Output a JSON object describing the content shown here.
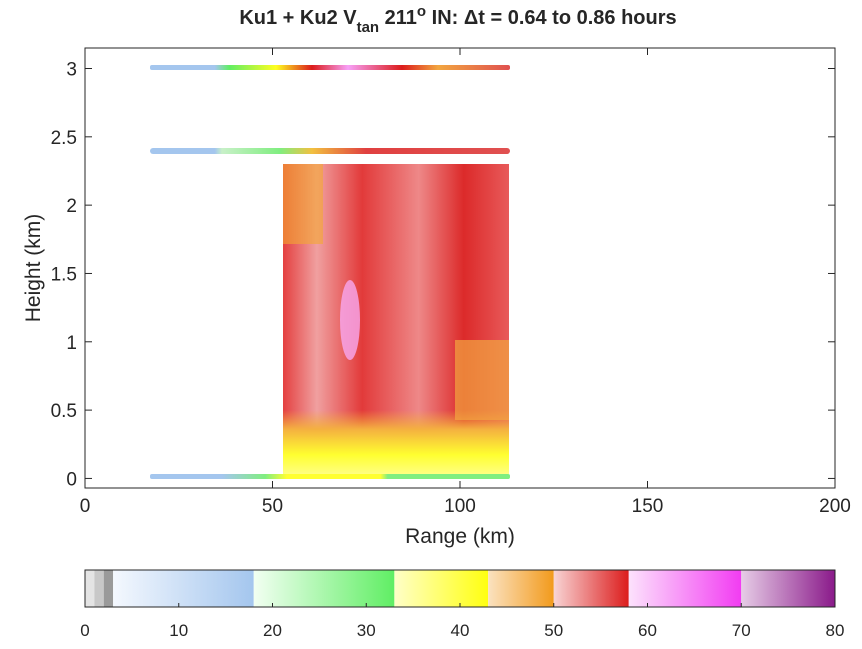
{
  "chart_data": {
    "type": "heatmap",
    "title": [
      "Ku1 + Ku2  V",
      "tan",
      " 211",
      "o",
      " IN: Δt = 0.64 to 0.86 hours"
    ],
    "x_label": "Range (km)",
    "y_label": "Height (km)",
    "xlim": [
      0,
      200
    ],
    "xticks": [
      0,
      50,
      100,
      150,
      200
    ],
    "ylim": [
      -0.07,
      3.15
    ],
    "yticks": [
      0,
      0.5,
      1,
      1.5,
      2,
      2.5,
      3
    ],
    "colorbar": {
      "clim": [
        0,
        80
      ],
      "ticks": [
        0,
        10,
        20,
        30,
        40,
        50,
        60,
        70,
        80
      ],
      "bands": [
        {
          "from": 0,
          "to": 1,
          "colors": [
            "#e4e4e4",
            "#e4e4e4"
          ]
        },
        {
          "from": 1,
          "to": 2,
          "colors": [
            "#c8c8c8",
            "#c8c8c8"
          ]
        },
        {
          "from": 2,
          "to": 3,
          "colors": [
            "#9a9a9a",
            "#9a9a9a"
          ]
        },
        {
          "from": 3,
          "to": 18,
          "colors": [
            "#f4f8fe",
            "#a4c6ee"
          ]
        },
        {
          "from": 18,
          "to": 33,
          "colors": [
            "#f2fff2",
            "#60ee64"
          ]
        },
        {
          "from": 33,
          "to": 43,
          "colors": [
            "#ffffc8",
            "#ffff10"
          ]
        },
        {
          "from": 43,
          "to": 50,
          "colors": [
            "#fbe2c0",
            "#f29a1c"
          ]
        },
        {
          "from": 50,
          "to": 58,
          "colors": [
            "#f8d4d4",
            "#dc1c1c"
          ]
        },
        {
          "from": 58,
          "to": 70,
          "colors": [
            "#fce2fc",
            "#f23cf2"
          ]
        },
        {
          "from": 70,
          "to": 80,
          "colors": [
            "#e6cce6",
            "#8a1a8a"
          ]
        }
      ]
    }
  }
}
